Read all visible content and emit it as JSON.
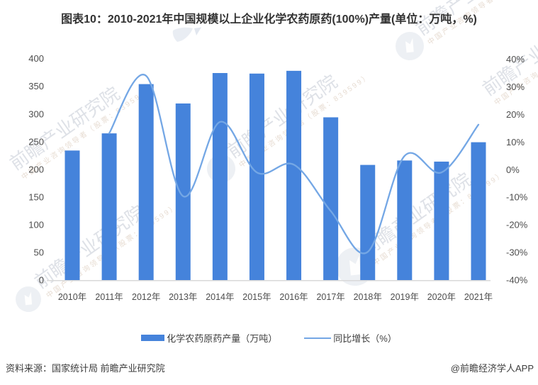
{
  "title": "图表10：2010-2021年中国规模以上企业化学农药原药(100%)产量(单位：万吨，%)",
  "chart_data": {
    "type": "bar+line",
    "title": "2010-2021年中国规模以上企业化学农药原药(100%)产量",
    "categories": [
      "2010年",
      "2011年",
      "2012年",
      "2013年",
      "2014年",
      "2015年",
      "2016年",
      "2017年",
      "2018年",
      "2019年",
      "2020年",
      "2021年"
    ],
    "series": [
      {
        "name": "化学农药原药产量（万吨）",
        "type": "bar",
        "axis": "left",
        "color": "#4583DB",
        "values": [
          234,
          265,
          354,
          319,
          374,
          373,
          378,
          294,
          208,
          216,
          214,
          249
        ]
      },
      {
        "name": "同比增长（%）",
        "type": "line",
        "axis": "right",
        "color": "#74A7E5",
        "values": [
          null,
          13.2,
          34,
          -9.6,
          17.3,
          -1,
          1.8,
          -15,
          -29.8,
          5,
          -1,
          16.3
        ]
      }
    ],
    "left_axis": {
      "label": "万吨",
      "range": [
        0,
        400
      ],
      "ticks": [
        "400",
        "350",
        "300",
        "250",
        "200",
        "150",
        "100",
        "50",
        "0"
      ]
    },
    "right_axis": {
      "label": "%",
      "range": [
        -40,
        40
      ],
      "ticks": [
        "40%",
        "30%",
        "20%",
        "10%",
        "0%",
        "-10%",
        "-20%",
        "-30%",
        "-40%"
      ]
    },
    "grid": false,
    "legend_position": "bottom"
  },
  "watermark": {
    "brand": "前瞻产业研究院",
    "tagline": "中国产业咨询领导者（股票：839599）"
  },
  "footer": {
    "source": "资料来源：国家统计局 前瞻产业研究院",
    "credit": "@前瞻经济学人APP"
  }
}
